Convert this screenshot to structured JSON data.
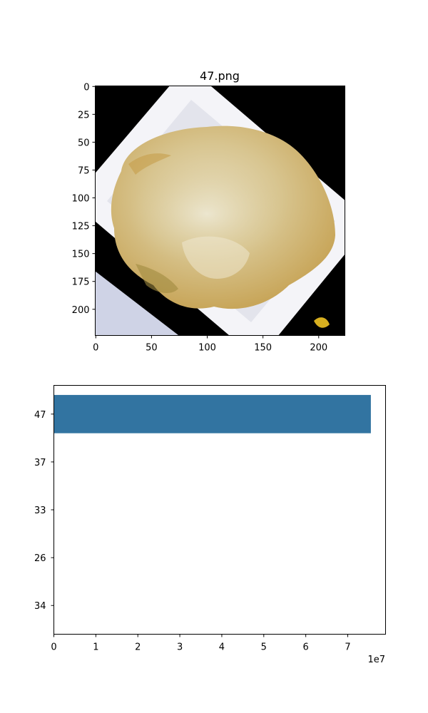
{
  "image_panel": {
    "title": "47.png",
    "x_ticks": [
      "0",
      "50",
      "100",
      "150",
      "200"
    ],
    "y_ticks": [
      "0",
      "25",
      "50",
      "75",
      "100",
      "125",
      "150",
      "175",
      "200"
    ]
  },
  "chart_data": {
    "type": "bar",
    "orientation": "horizontal",
    "categories": [
      "47",
      "37",
      "33",
      "26",
      "34"
    ],
    "values": [
      75500000,
      0,
      0,
      0,
      0
    ],
    "xlim": [
      0,
      79000000
    ],
    "x_ticks": [
      "0",
      "1",
      "2",
      "3",
      "4",
      "5",
      "6",
      "7"
    ],
    "x_offset_label": "1e7",
    "bar_color": "#3274a1",
    "title": "",
    "xlabel": "",
    "ylabel": ""
  }
}
